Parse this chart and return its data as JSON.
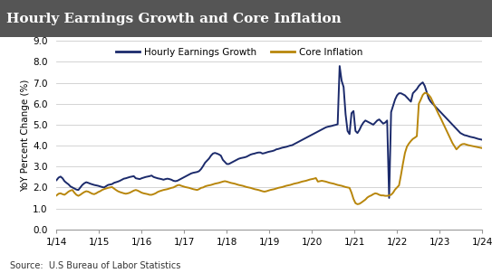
{
  "title": "Hourly Earnings Growth and Core Inflation",
  "title_bg_color": "#555555",
  "title_text_color": "#ffffff",
  "ylabel": "YoY Percent Change (%)",
  "source_text": "Source:  U.S Bureau of Labor Statistics",
  "ylim": [
    0.0,
    9.0
  ],
  "yticks": [
    0.0,
    1.0,
    2.0,
    3.0,
    4.0,
    5.0,
    6.0,
    7.0,
    8.0,
    9.0
  ],
  "xtick_labels": [
    "1/14",
    "1/15",
    "1/16",
    "1/17",
    "1/18",
    "1/19",
    "1/20",
    "1/21",
    "1/22",
    "1/23",
    "1/24"
  ],
  "heg_color": "#1b2a6b",
  "ci_color": "#b8860b",
  "bg_color": "#ffffff",
  "plot_bg_color": "#ffffff",
  "grid_color": "#cccccc",
  "hourly_earnings": [
    2.35,
    2.47,
    2.52,
    2.44,
    2.3,
    2.22,
    2.15,
    2.05,
    2.0,
    1.95,
    1.9,
    1.88,
    2.0,
    2.12,
    2.2,
    2.25,
    2.22,
    2.18,
    2.15,
    2.12,
    2.1,
    2.08,
    2.05,
    2.02,
    2.0,
    2.06,
    2.12,
    2.14,
    2.16,
    2.22,
    2.25,
    2.28,
    2.32,
    2.37,
    2.42,
    2.44,
    2.47,
    2.5,
    2.52,
    2.54,
    2.44,
    2.42,
    2.4,
    2.44,
    2.47,
    2.5,
    2.52,
    2.54,
    2.57,
    2.5,
    2.47,
    2.44,
    2.42,
    2.4,
    2.37,
    2.4,
    2.42,
    2.4,
    2.37,
    2.32,
    2.3,
    2.32,
    2.37,
    2.42,
    2.47,
    2.52,
    2.57,
    2.62,
    2.67,
    2.7,
    2.72,
    2.74,
    2.78,
    2.88,
    3.02,
    3.18,
    3.28,
    3.38,
    3.52,
    3.62,
    3.65,
    3.62,
    3.58,
    3.52,
    3.32,
    3.22,
    3.12,
    3.12,
    3.17,
    3.22,
    3.27,
    3.32,
    3.37,
    3.4,
    3.42,
    3.44,
    3.47,
    3.52,
    3.57,
    3.6,
    3.62,
    3.65,
    3.67,
    3.67,
    3.62,
    3.64,
    3.67,
    3.7,
    3.72,
    3.74,
    3.77,
    3.82,
    3.84,
    3.87,
    3.9,
    3.92,
    3.94,
    3.97,
    4.0,
    4.02,
    4.07,
    4.12,
    4.17,
    4.22,
    4.27,
    4.32,
    4.37,
    4.42,
    4.47,
    4.52,
    4.57,
    4.62,
    4.67,
    4.72,
    4.77,
    4.82,
    4.87,
    4.9,
    4.92,
    4.94,
    4.97,
    4.99,
    5.02,
    7.8,
    7.1,
    6.8,
    5.5,
    4.7,
    4.55,
    5.55,
    5.65,
    4.7,
    4.6,
    4.75,
    4.95,
    5.1,
    5.2,
    5.15,
    5.1,
    5.05,
    5.0,
    5.1,
    5.2,
    5.25,
    5.15,
    5.05,
    5.1,
    5.2,
    1.5,
    5.6,
    5.9,
    6.2,
    6.4,
    6.5,
    6.5,
    6.45,
    6.4,
    6.3,
    6.2,
    6.1,
    6.5,
    6.6,
    6.7,
    6.85,
    6.95,
    7.02,
    6.85,
    6.55,
    6.25,
    6.1,
    6.0,
    5.9,
    5.8,
    5.7,
    5.6,
    5.5,
    5.4,
    5.3,
    5.2,
    5.1,
    5.0,
    4.9,
    4.8,
    4.7,
    4.6,
    4.55,
    4.5,
    4.48,
    4.45,
    4.42,
    4.4,
    4.38,
    4.35,
    4.32,
    4.3,
    4.28
  ],
  "core_inflation": [
    1.62,
    1.7,
    1.72,
    1.68,
    1.65,
    1.72,
    1.8,
    1.85,
    1.88,
    1.75,
    1.65,
    1.6,
    1.65,
    1.72,
    1.78,
    1.82,
    1.8,
    1.75,
    1.7,
    1.68,
    1.72,
    1.78,
    1.82,
    1.88,
    1.92,
    1.95,
    1.98,
    2.0,
    2.02,
    1.95,
    1.88,
    1.82,
    1.78,
    1.75,
    1.72,
    1.7,
    1.72,
    1.75,
    1.8,
    1.85,
    1.88,
    1.85,
    1.8,
    1.75,
    1.72,
    1.7,
    1.68,
    1.65,
    1.65,
    1.68,
    1.72,
    1.78,
    1.82,
    1.85,
    1.88,
    1.9,
    1.92,
    1.95,
    1.98,
    2.0,
    2.05,
    2.1,
    2.12,
    2.08,
    2.05,
    2.02,
    2.0,
    1.98,
    1.95,
    1.92,
    1.9,
    1.88,
    1.92,
    1.98,
    2.0,
    2.05,
    2.08,
    2.1,
    2.12,
    2.15,
    2.18,
    2.2,
    2.22,
    2.25,
    2.28,
    2.3,
    2.28,
    2.25,
    2.22,
    2.2,
    2.18,
    2.15,
    2.12,
    2.1,
    2.08,
    2.05,
    2.02,
    2.0,
    1.98,
    1.95,
    1.92,
    1.9,
    1.88,
    1.85,
    1.82,
    1.8,
    1.82,
    1.85,
    1.88,
    1.9,
    1.92,
    1.95,
    1.98,
    2.0,
    2.02,
    2.05,
    2.08,
    2.1,
    2.12,
    2.15,
    2.18,
    2.2,
    2.22,
    2.25,
    2.28,
    2.3,
    2.32,
    2.35,
    2.38,
    2.4,
    2.42,
    2.45,
    2.28,
    2.3,
    2.32,
    2.3,
    2.28,
    2.25,
    2.22,
    2.2,
    2.18,
    2.15,
    2.12,
    2.1,
    2.08,
    2.05,
    2.02,
    2.0,
    1.98,
    1.75,
    1.45,
    1.25,
    1.2,
    1.22,
    1.28,
    1.35,
    1.42,
    1.52,
    1.58,
    1.62,
    1.68,
    1.72,
    1.7,
    1.65,
    1.62,
    1.62,
    1.6,
    1.6,
    1.62,
    1.65,
    1.75,
    1.9,
    2.0,
    2.1,
    2.6,
    3.15,
    3.65,
    3.95,
    4.1,
    4.22,
    4.32,
    4.38,
    4.45,
    6.0,
    6.2,
    6.42,
    6.52,
    6.5,
    6.42,
    6.3,
    6.1,
    5.9,
    5.7,
    5.5,
    5.32,
    5.12,
    4.92,
    4.72,
    4.52,
    4.32,
    4.12,
    3.97,
    3.82,
    3.92,
    4.02,
    4.07,
    4.08,
    4.05,
    4.02,
    4.0,
    3.98,
    3.96,
    3.94,
    3.92,
    3.9,
    3.88
  ]
}
